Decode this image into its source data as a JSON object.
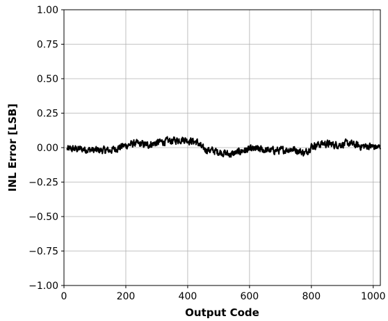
{
  "chart_data": {
    "type": "line",
    "title": "",
    "xlabel": "Output Code",
    "ylabel": "INL Error [LSB]",
    "xlim": [
      0,
      1023
    ],
    "ylim": [
      -1.0,
      1.0
    ],
    "grid": true,
    "x_ticks": [
      0,
      200,
      400,
      600,
      800,
      1000
    ],
    "x_tick_labels": [
      "0",
      "200",
      "400",
      "600",
      "800",
      "1000"
    ],
    "y_ticks": [
      1.0,
      0.75,
      0.5,
      0.25,
      0.0,
      -0.25,
      -0.5,
      -0.75,
      -1.0
    ],
    "y_tick_labels": [
      "1.00",
      "0.75",
      "0.50",
      "0.25",
      "0.00",
      "−0.25",
      "−0.50",
      "−0.75",
      "−1.00"
    ],
    "series": [
      {
        "color": "#000000",
        "x_start": 10,
        "x_end": 1023,
        "trend": [
          [
            10,
            -0.01
          ],
          [
            50,
            -0.01
          ],
          [
            100,
            -0.02
          ],
          [
            150,
            -0.02
          ],
          [
            190,
            0.01
          ],
          [
            230,
            0.03
          ],
          [
            270,
            0.02
          ],
          [
            310,
            0.04
          ],
          [
            350,
            0.05
          ],
          [
            385,
            0.06
          ],
          [
            430,
            0.04
          ],
          [
            450,
            -0.01
          ],
          [
            500,
            -0.03
          ],
          [
            540,
            -0.05
          ],
          [
            580,
            -0.02
          ],
          [
            620,
            -0.01
          ],
          [
            660,
            -0.02
          ],
          [
            700,
            -0.02
          ],
          [
            740,
            -0.01
          ],
          [
            780,
            -0.04
          ],
          [
            800,
            0.01
          ],
          [
            840,
            0.03
          ],
          [
            880,
            0.02
          ],
          [
            920,
            0.03
          ],
          [
            960,
            0.01
          ],
          [
            990,
            0.01
          ],
          [
            1023,
            0.0
          ]
        ],
        "noise_amplitude": 0.03
      }
    ]
  }
}
